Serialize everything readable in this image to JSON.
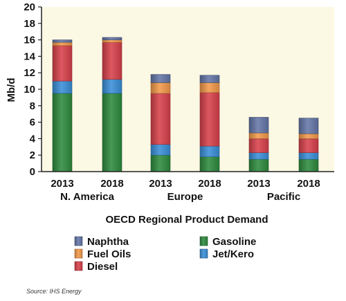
{
  "chart_data": {
    "type": "bar",
    "stacked": true,
    "title": "",
    "xlabel": "OECD Regional Product Demand",
    "ylabel": "Mb/d",
    "ylim": [
      0,
      20
    ],
    "yticks": [
      0,
      2,
      4,
      6,
      8,
      10,
      12,
      14,
      16,
      18,
      20
    ],
    "grid": false,
    "legend_position": "bottom",
    "categories": [
      "2013",
      "2018",
      "2013",
      "2018",
      "2013",
      "2018"
    ],
    "groups": [
      {
        "label": "N. America",
        "start": 0,
        "end": 1
      },
      {
        "label": "Europe",
        "start": 2,
        "end": 3
      },
      {
        "label": "Pacific",
        "start": 4,
        "end": 5
      }
    ],
    "series": [
      {
        "name": "Gasoline",
        "color": "#2e8b3e",
        "values": [
          9.5,
          9.5,
          2.0,
          1.8,
          1.5,
          1.5
        ]
      },
      {
        "name": "Jet/Kero",
        "color": "#3a8fd8",
        "values": [
          1.5,
          1.7,
          1.3,
          1.3,
          0.8,
          0.8
        ]
      },
      {
        "name": "Diesel",
        "color": "#d8414b",
        "values": [
          4.3,
          4.5,
          6.2,
          6.5,
          1.7,
          1.7
        ]
      },
      {
        "name": "Fuel Oils",
        "color": "#f39a4a",
        "values": [
          0.4,
          0.3,
          1.3,
          1.2,
          0.7,
          0.6
        ]
      },
      {
        "name": "Naphtha",
        "color": "#6477a8",
        "values": [
          0.3,
          0.3,
          1.0,
          0.9,
          1.9,
          1.9
        ]
      }
    ],
    "legend_order": [
      "Naphtha",
      "Gasoline",
      "Fuel Oils",
      "Jet/Kero",
      "Diesel"
    ],
    "plot_background": "#fbf8e4",
    "source": "Source: IHS Energy"
  }
}
